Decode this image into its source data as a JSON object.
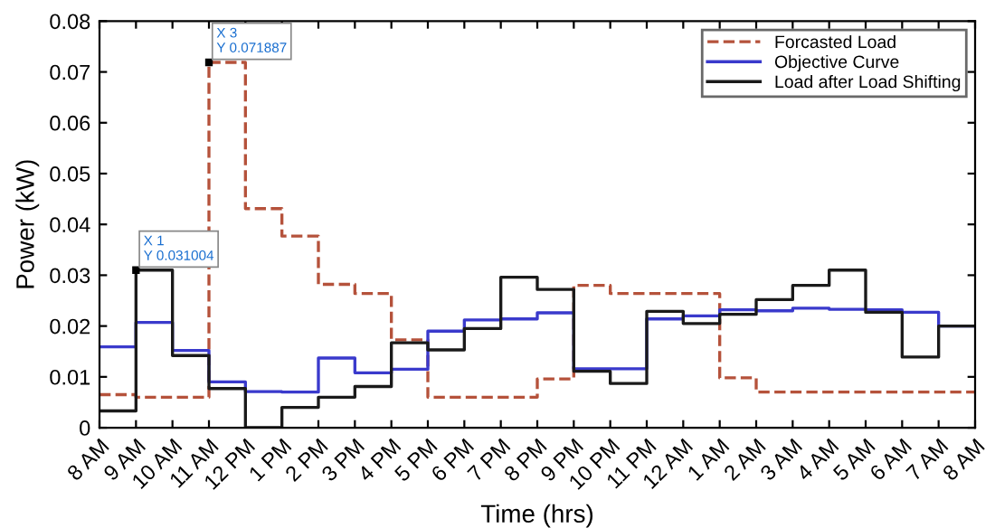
{
  "chart_data": {
    "type": "step",
    "xlabel": "Time (hrs)",
    "ylabel": "Power (kW)",
    "categories": [
      "8 AM",
      "9 AM",
      "10 AM",
      "11 AM",
      "12 PM",
      "1 PM",
      "2 PM",
      "3 PM",
      "4 PM",
      "5 PM",
      "6 PM",
      "7 PM",
      "8 PM",
      "9 PM",
      "10 PM",
      "11 PM",
      "12 AM",
      "1 AM",
      "2 AM",
      "3 AM",
      "4 AM",
      "5 AM",
      "6 AM",
      "7 AM",
      "8 AM"
    ],
    "ylim": [
      0,
      0.08
    ],
    "yticks": [
      0,
      0.01,
      0.02,
      0.03,
      0.04,
      0.05,
      0.06,
      0.07,
      0.08
    ],
    "series": [
      {
        "name": "Forcasted Load",
        "color": "#b5523b",
        "line_style": "dashed",
        "values": [
          0.0065,
          0.006,
          0.006,
          0.071887,
          0.0431,
          0.0377,
          0.0282,
          0.0264,
          0.0173,
          0.006,
          0.006,
          0.006,
          0.0096,
          0.028,
          0.0264,
          0.0264,
          0.0264,
          0.0098,
          0.007,
          0.007,
          0.007,
          0.007,
          0.007,
          0.007,
          0.007
        ]
      },
      {
        "name": "Objective Curve",
        "color": "#3a3acc",
        "line_style": "solid",
        "values": [
          0.0159,
          0.0207,
          0.0152,
          0.009,
          0.0071,
          0.007,
          0.0137,
          0.0108,
          0.0115,
          0.019,
          0.0212,
          0.0214,
          0.0226,
          0.0116,
          0.0116,
          0.0214,
          0.022,
          0.0232,
          0.023,
          0.0235,
          0.0233,
          0.0232,
          0.0227,
          0.02,
          0.02
        ]
      },
      {
        "name": "Load after Load Shifting",
        "color": "#1a1a1a",
        "line_style": "solid",
        "values": [
          0.0033,
          0.031004,
          0.0142,
          0.0077,
          0,
          0.004,
          0.006,
          0.0081,
          0.0167,
          0.0153,
          0.0195,
          0.0296,
          0.0272,
          0.0111,
          0.0087,
          0.0229,
          0.0205,
          0.0223,
          0.0252,
          0.028,
          0.031,
          0.0227,
          0.0139,
          0.02,
          0.02
        ]
      }
    ],
    "annotations": [
      {
        "text": "X 3\nY 0.071887",
        "x": "11 AM",
        "y": 0.071887
      },
      {
        "text": "X 1\nY 0.031004",
        "x": "9 AM",
        "y": 0.031004
      }
    ],
    "legend": "top right",
    "grid": false,
    "marker": "none"
  }
}
